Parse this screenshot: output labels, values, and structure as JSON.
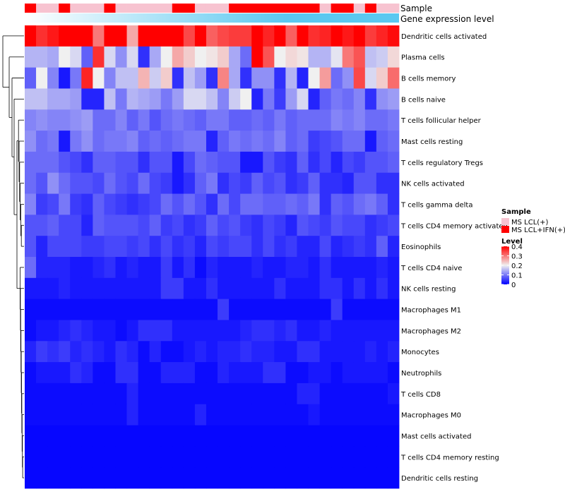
{
  "chart_data": {
    "type": "heatmap",
    "title": "",
    "annotation_labels": {
      "sample": "Sample",
      "gene_expression": "Gene expression level"
    },
    "sample_groups": [
      "MS LCL(+)",
      "MS LCL+IFN(+)"
    ],
    "legend": {
      "sample_title": "Sample",
      "sample_entries": [
        {
          "label": "MS LCL(+)",
          "color": "#f7c3d0"
        },
        {
          "label": "MS LCL+IFN(+)",
          "color": "#ff0000"
        }
      ],
      "level_title": "Level",
      "level_ticks": [
        "0.4",
        "0.3",
        "0.2",
        "0.1",
        "0"
      ],
      "level_range": [
        0,
        0.4
      ]
    },
    "colors": {
      "low": "#0000ff",
      "mid": "#f0f0f0",
      "high": "#ff0000",
      "expression_bar": "#5bc8f0"
    },
    "sample_annotation": [
      1,
      0,
      0,
      1,
      0,
      0,
      0,
      1,
      0,
      0,
      0,
      0,
      0,
      1,
      1,
      0,
      0,
      0,
      1,
      1,
      1,
      1,
      1,
      1,
      1,
      1,
      0,
      1,
      1,
      0,
      1,
      0,
      0
    ],
    "rows": [
      "Dendritic cells activated",
      "Plasma cells",
      "B cells memory",
      "B cells naive",
      "T cells follicular helper",
      "Mast cells resting",
      "T cells regulatory  Tregs",
      "NK cells activated",
      "T cells gamma delta",
      "T cells CD4 memory activated",
      "Eosinophils",
      "T cells CD4 naive",
      "NK cells resting",
      "Macrophages M1",
      "Macrophages M2",
      "Monocytes",
      "Neutrophils",
      "T cells CD8",
      "Macrophages M0",
      "Mast cells activated",
      "T cells CD4 memory resting",
      "Dendritic cells resting"
    ],
    "values": [
      [
        0.4,
        0.36,
        0.38,
        0.4,
        0.4,
        0.4,
        0.3,
        0.4,
        0.4,
        0.26,
        0.4,
        0.4,
        0.4,
        0.4,
        0.34,
        0.4,
        0.32,
        0.34,
        0.35,
        0.35,
        0.4,
        0.37,
        0.4,
        0.32,
        0.4,
        0.36,
        0.37,
        0.4,
        0.38,
        0.4,
        0.35,
        0.37,
        0.39
      ],
      [
        0.15,
        0.15,
        0.14,
        0.2,
        0.18,
        0.08,
        0.36,
        0.18,
        0.12,
        0.18,
        0.04,
        0.14,
        0.2,
        0.26,
        0.23,
        0.2,
        0.21,
        0.23,
        0.14,
        0.09,
        0.4,
        0.33,
        0.2,
        0.22,
        0.21,
        0.15,
        0.15,
        0.19,
        0.3,
        0.33,
        0.16,
        0.17,
        0.22
      ],
      [
        0.08,
        0.2,
        0.11,
        0.02,
        0.1,
        0.37,
        0.2,
        0.11,
        0.16,
        0.16,
        0.25,
        0.17,
        0.23,
        0.04,
        0.16,
        0.13,
        0.04,
        0.29,
        0.14,
        0.04,
        0.12,
        0.12,
        0.04,
        0.15,
        0.03,
        0.2,
        0.27,
        0.09,
        0.12,
        0.34,
        0.18,
        0.23,
        0.31
      ],
      [
        0.16,
        0.16,
        0.14,
        0.14,
        0.13,
        0.03,
        0.03,
        0.16,
        0.1,
        0.15,
        0.14,
        0.13,
        0.1,
        0.13,
        0.18,
        0.18,
        0.16,
        0.11,
        0.17,
        0.2,
        0.03,
        0.1,
        0.05,
        0.13,
        0.18,
        0.03,
        0.08,
        0.1,
        0.09,
        0.11,
        0.04,
        0.12,
        0.13
      ],
      [
        0.11,
        0.12,
        0.11,
        0.11,
        0.12,
        0.13,
        0.09,
        0.09,
        0.11,
        0.08,
        0.1,
        0.07,
        0.09,
        0.1,
        0.09,
        0.08,
        0.1,
        0.1,
        0.08,
        0.08,
        0.09,
        0.08,
        0.1,
        0.08,
        0.09,
        0.09,
        0.09,
        0.11,
        0.1,
        0.11,
        0.09,
        0.09,
        0.1
      ],
      [
        0.12,
        0.09,
        0.1,
        0.02,
        0.1,
        0.12,
        0.09,
        0.1,
        0.1,
        0.11,
        0.08,
        0.09,
        0.08,
        0.09,
        0.1,
        0.1,
        0.03,
        0.08,
        0.1,
        0.09,
        0.1,
        0.09,
        0.11,
        0.08,
        0.09,
        0.05,
        0.06,
        0.07,
        0.09,
        0.09,
        0.02,
        0.08,
        0.09
      ],
      [
        0.09,
        0.09,
        0.09,
        0.07,
        0.06,
        0.04,
        0.08,
        0.08,
        0.07,
        0.07,
        0.04,
        0.07,
        0.07,
        0.02,
        0.06,
        0.09,
        0.08,
        0.07,
        0.07,
        0.02,
        0.02,
        0.07,
        0.05,
        0.04,
        0.08,
        0.04,
        0.06,
        0.03,
        0.06,
        0.05,
        0.07,
        0.07,
        0.08
      ],
      [
        0.09,
        0.07,
        0.12,
        0.09,
        0.07,
        0.07,
        0.06,
        0.09,
        0.07,
        0.06,
        0.09,
        0.06,
        0.05,
        0.02,
        0.04,
        0.08,
        0.1,
        0.04,
        0.06,
        0.05,
        0.08,
        0.06,
        0.07,
        0.04,
        0.05,
        0.08,
        0.04,
        0.04,
        0.03,
        0.07,
        0.07,
        0.04,
        0.04
      ],
      [
        0.11,
        0.05,
        0.06,
        0.1,
        0.05,
        0.04,
        0.08,
        0.06,
        0.05,
        0.04,
        0.05,
        0.06,
        0.09,
        0.07,
        0.09,
        0.07,
        0.04,
        0.09,
        0.06,
        0.09,
        0.09,
        0.08,
        0.08,
        0.09,
        0.08,
        0.1,
        0.04,
        0.08,
        0.07,
        0.09,
        0.1,
        0.08,
        0.04
      ],
      [
        0.07,
        0.07,
        0.08,
        0.06,
        0.06,
        0.03,
        0.08,
        0.07,
        0.07,
        0.07,
        0.06,
        0.08,
        0.05,
        0.06,
        0.04,
        0.05,
        0.08,
        0.06,
        0.07,
        0.05,
        0.04,
        0.06,
        0.05,
        0.03,
        0.07,
        0.06,
        0.05,
        0.07,
        0.06,
        0.06,
        0.04,
        0.05,
        0.06
      ],
      [
        0.07,
        0.03,
        0.06,
        0.06,
        0.06,
        0.05,
        0.05,
        0.06,
        0.06,
        0.05,
        0.06,
        0.04,
        0.06,
        0.04,
        0.05,
        0.03,
        0.06,
        0.05,
        0.06,
        0.06,
        0.04,
        0.06,
        0.04,
        0.05,
        0.03,
        0.03,
        0.06,
        0.03,
        0.04,
        0.05,
        0.04,
        0.08,
        0.03
      ],
      [
        0.09,
        0.03,
        0.03,
        0.03,
        0.02,
        0.02,
        0.03,
        0.04,
        0.02,
        0.03,
        0.02,
        0.02,
        0.05,
        0.02,
        0.04,
        0.01,
        0.03,
        0.02,
        0.02,
        0.02,
        0.03,
        0.02,
        0.02,
        0.03,
        0.03,
        0.02,
        0.04,
        0.02,
        0.02,
        0.02,
        0.02,
        0.03,
        0.02
      ],
      [
        0.02,
        0.02,
        0.02,
        0.03,
        0.02,
        0.02,
        0.02,
        0.02,
        0.02,
        0.02,
        0.02,
        0.02,
        0.05,
        0.05,
        0.02,
        0.02,
        0.04,
        0.02,
        0.02,
        0.02,
        0.02,
        0.02,
        0.04,
        0.02,
        0.02,
        0.02,
        0.04,
        0.04,
        0.02,
        0.04,
        0.02,
        0.04,
        0.02
      ],
      [
        0.01,
        0.01,
        0.01,
        0.01,
        0.01,
        0.01,
        0.01,
        0.01,
        0.01,
        0.01,
        0.01,
        0.01,
        0.01,
        0.01,
        0.01,
        0.01,
        0.01,
        0.05,
        0.01,
        0.01,
        0.01,
        0.01,
        0.01,
        0.01,
        0.01,
        0.01,
        0.01,
        0.05,
        0.01,
        0.01,
        0.01,
        0.01,
        0.01
      ],
      [
        0.01,
        0.02,
        0.02,
        0.03,
        0.04,
        0.03,
        0.02,
        0.02,
        0.01,
        0.02,
        0.04,
        0.04,
        0.04,
        0.02,
        0.02,
        0.02,
        0.02,
        0.02,
        0.02,
        0.03,
        0.04,
        0.04,
        0.03,
        0.04,
        0.02,
        0.02,
        0.03,
        0.02,
        0.02,
        0.02,
        0.02,
        0.02,
        0.02
      ],
      [
        0.03,
        0.05,
        0.04,
        0.05,
        0.03,
        0.04,
        0.03,
        0.02,
        0.04,
        0.03,
        0.01,
        0.03,
        0.01,
        0.01,
        0.02,
        0.03,
        0.02,
        0.03,
        0.03,
        0.04,
        0.03,
        0.03,
        0.02,
        0.02,
        0.04,
        0.04,
        0.02,
        0.02,
        0.02,
        0.02,
        0.03,
        0.02,
        0.03
      ],
      [
        0.01,
        0.02,
        0.02,
        0.02,
        0.04,
        0.03,
        0.01,
        0.01,
        0.04,
        0.04,
        0.01,
        0.01,
        0.03,
        0.03,
        0.03,
        0.01,
        0.01,
        0.03,
        0.02,
        0.02,
        0.02,
        0.04,
        0.04,
        0.01,
        0.01,
        0.02,
        0.02,
        0.01,
        0.02,
        0.02,
        0.02,
        0.02,
        0.01
      ],
      [
        0.01,
        0.01,
        0.01,
        0.01,
        0.01,
        0.01,
        0.01,
        0.01,
        0.01,
        0.03,
        0.01,
        0.01,
        0.01,
        0.01,
        0.01,
        0.01,
        0.01,
        0.01,
        0.01,
        0.01,
        0.01,
        0.01,
        0.01,
        0.01,
        0.03,
        0.03,
        0.01,
        0.01,
        0.01,
        0.01,
        0.01,
        0.01,
        0.02
      ],
      [
        0.01,
        0.01,
        0.01,
        0.01,
        0.01,
        0.01,
        0.01,
        0.01,
        0.01,
        0.03,
        0.01,
        0.01,
        0.01,
        0.01,
        0.01,
        0.03,
        0.01,
        0.01,
        0.01,
        0.01,
        0.01,
        0.01,
        0.01,
        0.01,
        0.01,
        0.02,
        0.01,
        0.01,
        0.01,
        0.01,
        0.01,
        0.01,
        0.01
      ],
      [
        0.005,
        0.005,
        0.005,
        0.005,
        0.005,
        0.005,
        0.005,
        0.005,
        0.005,
        0.005,
        0.005,
        0.005,
        0.005,
        0.005,
        0.005,
        0.005,
        0.005,
        0.005,
        0.005,
        0.005,
        0.005,
        0.005,
        0.005,
        0.005,
        0.005,
        0.005,
        0.005,
        0.005,
        0.005,
        0.005,
        0.005,
        0.005,
        0.005
      ],
      [
        0.005,
        0.005,
        0.005,
        0.005,
        0.005,
        0.005,
        0.005,
        0.005,
        0.005,
        0.005,
        0.005,
        0.005,
        0.005,
        0.005,
        0.005,
        0.005,
        0.005,
        0.005,
        0.005,
        0.005,
        0.005,
        0.005,
        0.005,
        0.005,
        0.005,
        0.005,
        0.005,
        0.005,
        0.005,
        0.005,
        0.005,
        0.005,
        0.005
      ],
      [
        0.005,
        0.005,
        0.005,
        0.005,
        0.005,
        0.005,
        0.005,
        0.005,
        0.005,
        0.005,
        0.005,
        0.005,
        0.005,
        0.005,
        0.005,
        0.005,
        0.005,
        0.005,
        0.005,
        0.005,
        0.005,
        0.005,
        0.005,
        0.005,
        0.005,
        0.005,
        0.005,
        0.005,
        0.005,
        0.005,
        0.005,
        0.005,
        0.005
      ]
    ]
  }
}
